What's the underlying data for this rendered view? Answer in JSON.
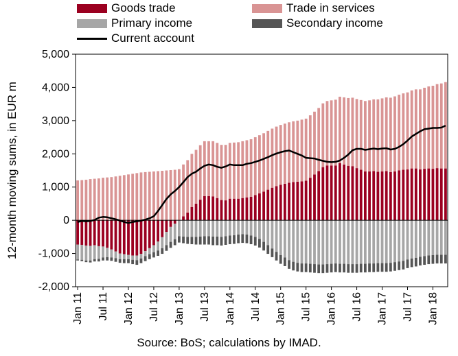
{
  "chart_data": {
    "type": "bar",
    "stacked": true,
    "ylabel": "12-month moving sums, in EUR m",
    "ylim": [
      -2000,
      5000
    ],
    "yticks": [
      "5,000",
      "4,000",
      "3,000",
      "2,000",
      "1,000",
      "0",
      "-1,000",
      "-2,000"
    ],
    "ytick_values": [
      5000,
      4000,
      3000,
      2000,
      1000,
      0,
      -1000,
      -2000
    ],
    "xtick_labels": [
      "Jan 11",
      "Jul 11",
      "Jan 12",
      "Jul 12",
      "Jan 13",
      "Jul 13",
      "Jan 14",
      "Jul 14",
      "Jan 15",
      "Jul 15",
      "Jan 16",
      "Jul 16",
      "Jan 17",
      "Jul 17",
      "Jan 18"
    ],
    "xtick_indices": [
      0,
      6,
      12,
      18,
      24,
      30,
      36,
      42,
      48,
      54,
      60,
      66,
      72,
      78,
      84
    ],
    "periods": 88,
    "legend_position": "top",
    "source": "Source: BoS; calculations by IMAD.",
    "series": [
      {
        "name": "Goods trade",
        "color": "#9b0020",
        "values": [
          -730,
          -740,
          -760,
          -770,
          -750,
          -780,
          -790,
          -830,
          -880,
          -940,
          -1000,
          -1020,
          -1040,
          -1060,
          -1060,
          -1010,
          -930,
          -840,
          -750,
          -640,
          -510,
          -350,
          -200,
          -100,
          0,
          120,
          230,
          400,
          500,
          620,
          730,
          730,
          720,
          670,
          610,
          600,
          650,
          650,
          650,
          670,
          690,
          710,
          760,
          810,
          860,
          920,
          980,
          1030,
          1070,
          1100,
          1130,
          1150,
          1160,
          1170,
          1190,
          1280,
          1380,
          1480,
          1600,
          1650,
          1650,
          1650,
          1720,
          1680,
          1640,
          1630,
          1570,
          1520,
          1470,
          1470,
          1480,
          1460,
          1470,
          1480,
          1450,
          1470,
          1500,
          1520,
          1530,
          1560,
          1560,
          1530,
          1550,
          1560,
          1550,
          1570,
          1560,
          1560
        ]
      },
      {
        "name": "Trade in services",
        "color": "#d99494",
        "values": [
          1200,
          1210,
          1220,
          1240,
          1250,
          1260,
          1280,
          1290,
          1300,
          1320,
          1340,
          1360,
          1380,
          1400,
          1420,
          1440,
          1450,
          1460,
          1470,
          1480,
          1490,
          1500,
          1510,
          1520,
          1540,
          1560,
          1580,
          1600,
          1620,
          1640,
          1650,
          1650,
          1660,
          1660,
          1660,
          1670,
          1680,
          1690,
          1700,
          1710,
          1720,
          1730,
          1740,
          1750,
          1760,
          1770,
          1780,
          1790,
          1800,
          1810,
          1820,
          1830,
          1840,
          1860,
          1870,
          1880,
          1890,
          1900,
          1920,
          1940,
          1960,
          1980,
          2000,
          2020,
          2040,
          2060,
          2080,
          2100,
          2120,
          2140,
          2160,
          2180,
          2200,
          2220,
          2240,
          2260,
          2280,
          2300,
          2320,
          2350,
          2380,
          2410,
          2440,
          2470,
          2500,
          2530,
          2560,
          2600
        ]
      },
      {
        "name": "Primary income",
        "color": "#a6a6a6",
        "values": [
          -450,
          -450,
          -450,
          -440,
          -420,
          -380,
          -330,
          -280,
          -240,
          -200,
          -170,
          -150,
          -130,
          -130,
          -140,
          -140,
          -150,
          -180,
          -210,
          -270,
          -330,
          -400,
          -450,
          -470,
          -480,
          -490,
          -500,
          -500,
          -500,
          -490,
          -480,
          -480,
          -490,
          -490,
          -500,
          -480,
          -460,
          -450,
          -430,
          -420,
          -430,
          -460,
          -500,
          -560,
          -650,
          -750,
          -850,
          -950,
          -1050,
          -1120,
          -1200,
          -1250,
          -1280,
          -1300,
          -1300,
          -1310,
          -1320,
          -1330,
          -1330,
          -1320,
          -1310,
          -1300,
          -1310,
          -1310,
          -1320,
          -1320,
          -1320,
          -1310,
          -1310,
          -1300,
          -1300,
          -1290,
          -1290,
          -1290,
          -1280,
          -1260,
          -1240,
          -1220,
          -1180,
          -1150,
          -1130,
          -1100,
          -1080,
          -1060,
          -1050,
          -1040,
          -1040,
          -1040
        ]
      },
      {
        "name": "Secondary income",
        "color": "#555555",
        "values": [
          -30,
          -40,
          -50,
          -60,
          -70,
          -80,
          -90,
          -100,
          -100,
          -110,
          -110,
          -120,
          -120,
          -130,
          -140,
          -140,
          -150,
          -150,
          -160,
          -160,
          -170,
          -170,
          -180,
          -180,
          -190,
          -200,
          -210,
          -220,
          -230,
          -240,
          -250,
          -250,
          -260,
          -260,
          -260,
          -260,
          -260,
          -260,
          -260,
          -260,
          -260,
          -260,
          -260,
          -260,
          -260,
          -260,
          -260,
          -260,
          -260,
          -260,
          -260,
          -260,
          -260,
          -260,
          -260,
          -260,
          -260,
          -260,
          -260,
          -260,
          -260,
          -260,
          -260,
          -260,
          -260,
          -260,
          -260,
          -260,
          -260,
          -260,
          -260,
          -260,
          -260,
          -260,
          -260,
          -260,
          -260,
          -260,
          -260,
          -260,
          -260,
          -260,
          -260,
          -260,
          -260,
          -260,
          -260,
          -260
        ]
      },
      {
        "name": "Current account",
        "color": "#000000",
        "type": "line",
        "values": [
          -50,
          -20,
          -30,
          -20,
          10,
          80,
          100,
          90,
          60,
          30,
          -10,
          -50,
          -80,
          -50,
          -30,
          -10,
          20,
          60,
          120,
          280,
          460,
          640,
          780,
          880,
          1000,
          1150,
          1300,
          1400,
          1460,
          1560,
          1640,
          1680,
          1660,
          1610,
          1580,
          1620,
          1680,
          1660,
          1660,
          1660,
          1700,
          1720,
          1760,
          1800,
          1850,
          1900,
          1960,
          2010,
          2050,
          2080,
          2100,
          2050,
          2000,
          1950,
          1880,
          1870,
          1860,
          1820,
          1790,
          1760,
          1750,
          1760,
          1800,
          1880,
          1980,
          2110,
          2150,
          2150,
          2120,
          2140,
          2160,
          2140,
          2160,
          2170,
          2130,
          2150,
          2210,
          2290,
          2400,
          2520,
          2600,
          2680,
          2740,
          2760,
          2780,
          2780,
          2790,
          2850
        ]
      }
    ]
  }
}
